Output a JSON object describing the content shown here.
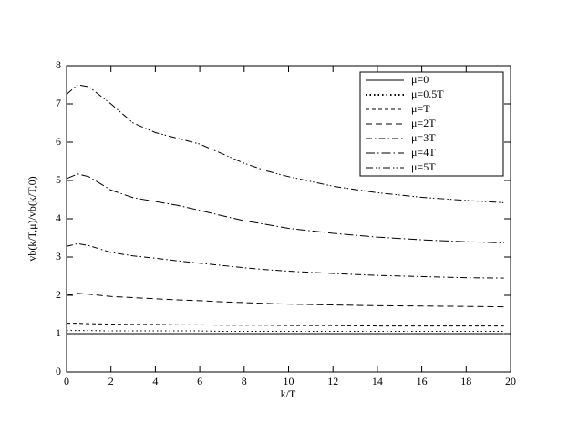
{
  "chart_data": {
    "type": "line",
    "xlabel": "k/T",
    "ylabel": "vb(k/T,μ)/vb(k/T,0)",
    "x": [
      0,
      0.5,
      1,
      2,
      3,
      4,
      5,
      6,
      7,
      8,
      9,
      10,
      12,
      14,
      16,
      18,
      19.7
    ],
    "series": [
      {
        "name": "μ=0",
        "color": "#000000",
        "values": [
          1,
          1,
          1,
          1,
          1,
          1,
          1,
          1,
          1,
          1,
          1,
          1,
          1,
          1,
          1,
          1,
          1
        ]
      },
      {
        "name": "μ=0.5T",
        "color": "#000000",
        "values": [
          1.08,
          1.08,
          1.08,
          1.07,
          1.07,
          1.07,
          1.07,
          1.07,
          1.06,
          1.06,
          1.06,
          1.06,
          1.06,
          1.06,
          1.06,
          1.06,
          1.06
        ]
      },
      {
        "name": "μ=T",
        "color": "#000000",
        "values": [
          1.27,
          1.27,
          1.26,
          1.25,
          1.24,
          1.24,
          1.23,
          1.23,
          1.22,
          1.22,
          1.22,
          1.21,
          1.21,
          1.2,
          1.2,
          1.2,
          1.2
        ]
      },
      {
        "name": "μ=2T",
        "color": "#000000",
        "values": [
          2.0,
          2.05,
          2.03,
          1.97,
          1.94,
          1.91,
          1.88,
          1.86,
          1.83,
          1.81,
          1.79,
          1.77,
          1.75,
          1.73,
          1.72,
          1.71,
          1.7
        ]
      },
      {
        "name": "μ=3T",
        "color": "#000000",
        "values": [
          3.28,
          3.35,
          3.3,
          3.12,
          3.03,
          2.97,
          2.9,
          2.84,
          2.78,
          2.72,
          2.67,
          2.63,
          2.57,
          2.52,
          2.49,
          2.46,
          2.45
        ]
      },
      {
        "name": "μ=4T",
        "color": "#000000",
        "values": [
          5.05,
          5.17,
          5.1,
          4.75,
          4.55,
          4.45,
          4.35,
          4.22,
          4.08,
          3.95,
          3.85,
          3.75,
          3.62,
          3.52,
          3.45,
          3.4,
          3.37
        ]
      },
      {
        "name": "μ=5T",
        "color": "#000000",
        "values": [
          7.25,
          7.5,
          7.45,
          7.0,
          6.5,
          6.25,
          6.1,
          5.95,
          5.7,
          5.45,
          5.25,
          5.1,
          4.85,
          4.68,
          4.56,
          4.48,
          4.42
        ]
      }
    ],
    "xlim": [
      0,
      20
    ],
    "xticks": [
      0,
      2,
      4,
      6,
      8,
      10,
      12,
      14,
      16,
      18,
      20
    ],
    "ylim": [
      0,
      8
    ],
    "yticks": [
      0,
      1,
      2,
      3,
      4,
      5,
      6,
      7,
      8
    ],
    "legend": "top-right"
  }
}
